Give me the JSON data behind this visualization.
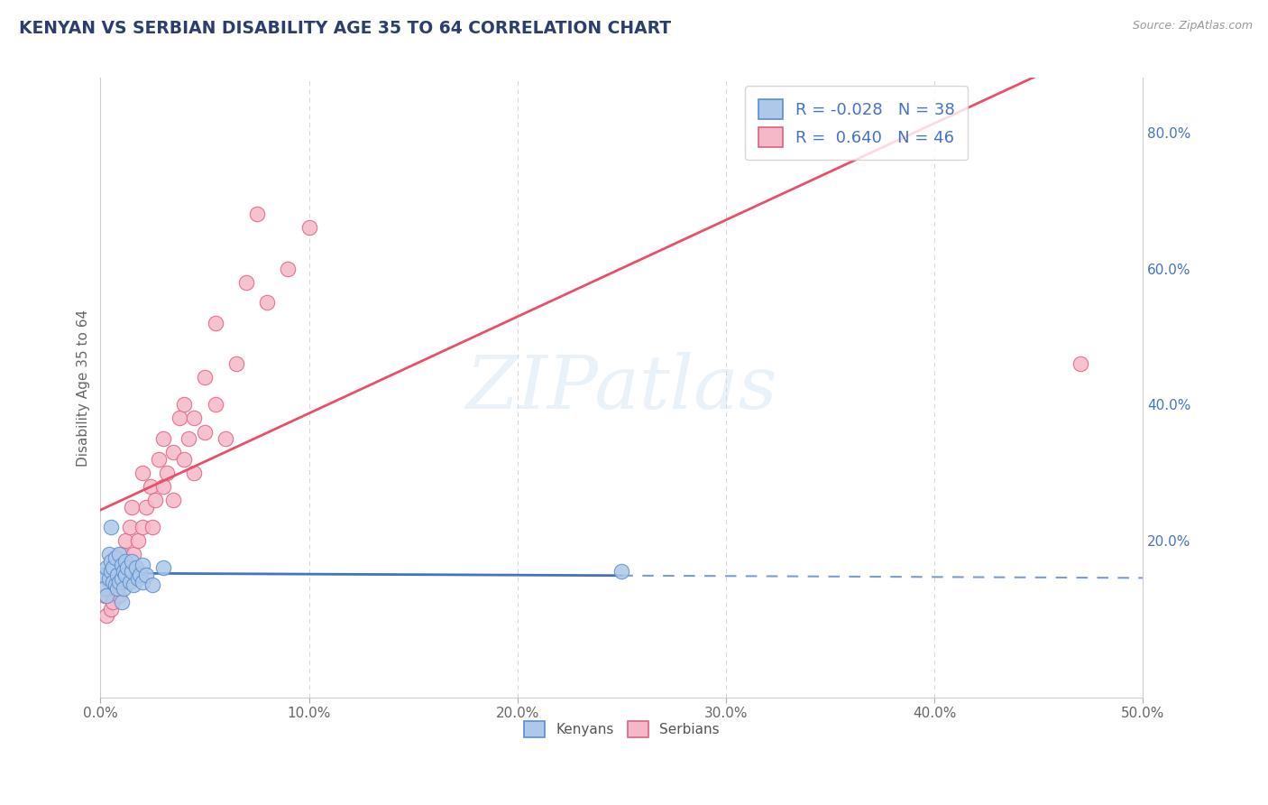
{
  "title": "KENYAN VS SERBIAN DISABILITY AGE 35 TO 64 CORRELATION CHART",
  "source": "Source: ZipAtlas.com",
  "ylabel": "Disability Age 35 to 64",
  "xlim": [
    0.0,
    50.0
  ],
  "ylim": [
    -3.0,
    88.0
  ],
  "yticks_right": [
    20.0,
    40.0,
    60.0,
    80.0
  ],
  "xticks": [
    0.0,
    10.0,
    20.0,
    30.0,
    40.0,
    50.0
  ],
  "kenyan_color": "#adc8e8",
  "serbian_color": "#f5b8c8",
  "kenyan_edge_color": "#5b8ecf",
  "serbian_edge_color": "#e06080",
  "kenyan_line_color": "#4472c4",
  "serbian_line_color": "#e8506a",
  "watermark": "ZIPatlas",
  "kenyan_R": -0.028,
  "kenyan_N": 38,
  "serbian_R": 0.64,
  "serbian_N": 46,
  "kenyan_scatter_x": [
    0.1,
    0.2,
    0.3,
    0.3,
    0.4,
    0.4,
    0.5,
    0.5,
    0.5,
    0.6,
    0.6,
    0.7,
    0.7,
    0.8,
    0.8,
    0.9,
    0.9,
    1.0,
    1.0,
    1.0,
    1.1,
    1.1,
    1.2,
    1.2,
    1.3,
    1.4,
    1.5,
    1.5,
    1.6,
    1.7,
    1.8,
    1.9,
    2.0,
    2.0,
    2.2,
    2.5,
    3.0,
    25.0
  ],
  "kenyan_scatter_y": [
    15.0,
    13.0,
    16.0,
    12.0,
    18.0,
    14.5,
    17.0,
    15.5,
    22.0,
    16.0,
    14.0,
    13.5,
    17.5,
    15.0,
    13.0,
    14.0,
    18.0,
    16.5,
    14.5,
    11.0,
    15.5,
    13.0,
    17.0,
    15.0,
    16.0,
    14.0,
    15.5,
    17.0,
    13.5,
    16.0,
    14.5,
    15.0,
    16.5,
    14.0,
    15.0,
    13.5,
    16.0,
    15.5
  ],
  "serbian_scatter_x": [
    0.2,
    0.3,
    0.4,
    0.5,
    0.6,
    0.7,
    0.8,
    0.9,
    1.0,
    1.0,
    1.2,
    1.3,
    1.4,
    1.5,
    1.6,
    1.8,
    2.0,
    2.0,
    2.2,
    2.4,
    2.5,
    2.6,
    2.8,
    3.0,
    3.0,
    3.2,
    3.5,
    3.5,
    3.8,
    4.0,
    4.0,
    4.2,
    4.5,
    4.5,
    5.0,
    5.0,
    5.5,
    5.5,
    6.0,
    6.5,
    7.0,
    7.5,
    8.0,
    9.0,
    10.0,
    47.0
  ],
  "serbian_scatter_y": [
    12.0,
    9.0,
    14.0,
    10.0,
    11.0,
    13.0,
    15.0,
    12.0,
    18.0,
    14.0,
    20.0,
    16.0,
    22.0,
    25.0,
    18.0,
    20.0,
    22.0,
    30.0,
    25.0,
    28.0,
    22.0,
    26.0,
    32.0,
    28.0,
    35.0,
    30.0,
    33.0,
    26.0,
    38.0,
    32.0,
    40.0,
    35.0,
    30.0,
    38.0,
    36.0,
    44.0,
    40.0,
    52.0,
    35.0,
    46.0,
    58.0,
    68.0,
    55.0,
    60.0,
    66.0,
    46.0
  ]
}
